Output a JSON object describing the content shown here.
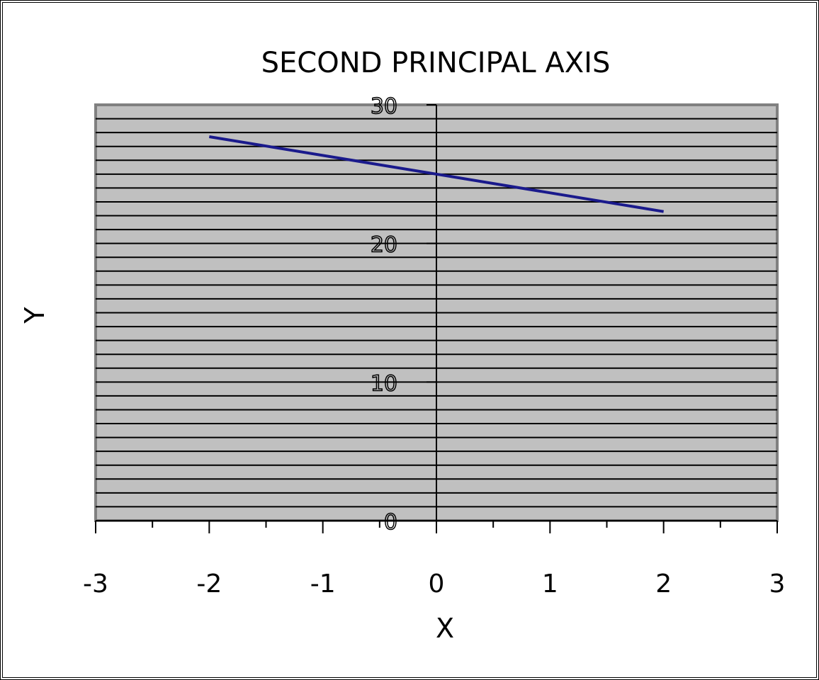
{
  "chart_data": {
    "type": "line",
    "title": "SECOND PRINCIPAL AXIS",
    "xlabel": "X",
    "ylabel": "Y",
    "xlim": [
      -3,
      3
    ],
    "ylim": [
      0,
      30
    ],
    "x_ticks": [
      "-3",
      "-2",
      "-1",
      "0",
      "1",
      "2",
      "3"
    ],
    "y_ticks": [
      "0",
      "10",
      "20",
      "30"
    ],
    "grid": true,
    "series": [
      {
        "x": [
          -2,
          2
        ],
        "y": [
          27.7,
          22.3
        ],
        "color": "#1a1a8c"
      }
    ],
    "colors": {
      "plot_background": "#c0c0c0",
      "gridline": "#000000",
      "plot_border": "#808080",
      "line": "#1a1a8c"
    }
  }
}
